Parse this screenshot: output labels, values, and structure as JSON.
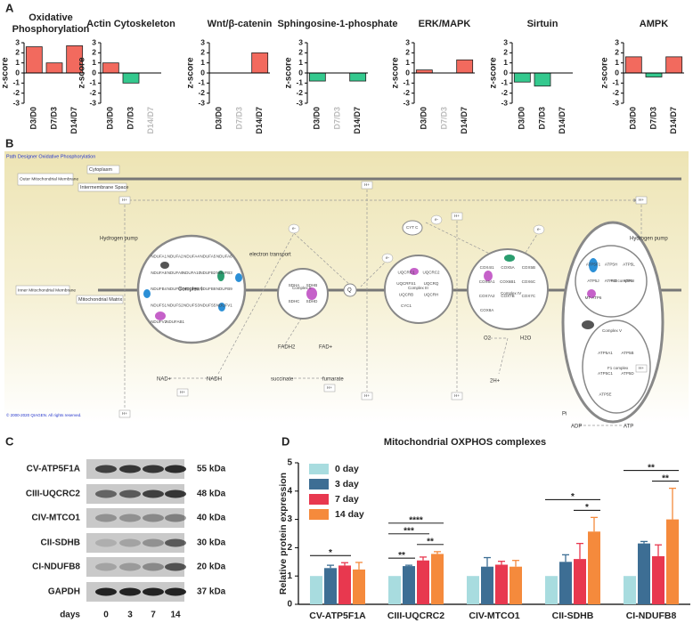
{
  "panel_labels": [
    "A",
    "B",
    "C",
    "D"
  ],
  "chart_data": [
    {
      "type": "bar",
      "title": "Oxidative Phosphorylation",
      "y_label": "z-score",
      "categories": [
        "D3/D0",
        "D7/D3",
        "D14/D7"
      ],
      "values": [
        2.6,
        1.0,
        2.7
      ],
      "positive_color": "#f26a5e",
      "negative_color": "#34c98e",
      "ylim": [
        -3,
        3
      ],
      "yticks": [
        -3,
        -2,
        -1,
        0,
        1,
        2,
        3
      ]
    },
    {
      "type": "bar",
      "title": "Actin Cytoskeleton",
      "y_label": "z-score",
      "categories": [
        "D3/D0",
        "D7/D3",
        "D14/D7"
      ],
      "values": [
        1.0,
        -1.0,
        null
      ],
      "positive_color": "#f26a5e",
      "negative_color": "#34c98e",
      "ylim": [
        -3,
        3
      ],
      "yticks": [
        -3,
        -2,
        -1,
        0,
        1,
        2,
        3
      ]
    },
    {
      "type": "bar",
      "title": "Wnt/β-catenin",
      "y_label": "z-score",
      "categories": [
        "D3/D0",
        "D7/D3",
        "D14/D7"
      ],
      "values": [
        0,
        null,
        2.0
      ],
      "positive_color": "#f26a5e",
      "negative_color": "#34c98e",
      "ylim": [
        -3,
        3
      ],
      "yticks": [
        -3,
        -2,
        -1,
        0,
        1,
        2,
        3
      ]
    },
    {
      "type": "bar",
      "title": "Sphingosine-1-phosphate",
      "y_label": "z-score",
      "categories": [
        "D3/D0",
        "D7/D3",
        "D14/D7"
      ],
      "values": [
        -0.8,
        null,
        -0.8
      ],
      "positive_color": "#f26a5e",
      "negative_color": "#34c98e",
      "ylim": [
        -3,
        3
      ],
      "yticks": [
        -3,
        -2,
        -1,
        0,
        1,
        2,
        3
      ]
    },
    {
      "type": "bar",
      "title": "ERK/MAPK",
      "y_label": "z-score",
      "categories": [
        "D3/D0",
        "D7/D3",
        "D14/D7"
      ],
      "values": [
        0.3,
        null,
        1.3
      ],
      "positive_color": "#f26a5e",
      "negative_color": "#34c98e",
      "ylim": [
        -3,
        3
      ],
      "yticks": [
        -3,
        -2,
        -1,
        0,
        1,
        2,
        3
      ]
    },
    {
      "type": "bar",
      "title": "Sirtuin",
      "y_label": "z-score",
      "categories": [
        "D3/D0",
        "D7/D3",
        "D14/D7"
      ],
      "values": [
        -0.9,
        -1.3,
        0
      ],
      "positive_color": "#f26a5e",
      "negative_color": "#34c98e",
      "ylim": [
        -3,
        3
      ],
      "yticks": [
        -3,
        -2,
        -1,
        0,
        1,
        2,
        3
      ]
    },
    {
      "type": "bar",
      "title": "AMPK",
      "y_label": "z-score",
      "categories": [
        "D3/D0",
        "D7/D3",
        "D14/D7"
      ],
      "values": [
        1.6,
        -0.4,
        1.6
      ],
      "positive_color": "#f26a5e",
      "negative_color": "#34c98e",
      "ylim": [
        -3,
        3
      ],
      "yticks": [
        -3,
        -2,
        -1,
        0,
        1,
        2,
        3
      ]
    },
    {
      "type": "grouped_bar",
      "title": "Mitochondrial OXPHOS complexes",
      "y_label": "Relative protein expression",
      "categories": [
        "CV-ATP5F1A",
        "CIII-UQCRC2",
        "CIV-MTCO1",
        "CII-SDHB",
        "CI-NDUFB8"
      ],
      "series": [
        {
          "name": "0 day",
          "color": "#a8dcdf",
          "values": [
            1,
            1,
            1,
            1,
            1
          ],
          "errors": [
            null,
            null,
            null,
            null,
            null
          ]
        },
        {
          "name": "3 day",
          "color": "#3d6e94",
          "values": [
            1.28,
            1.35,
            1.33,
            1.5,
            2.15
          ],
          "errors": [
            0.1,
            0.03,
            0.32,
            0.25,
            0.07
          ]
        },
        {
          "name": "7 day",
          "color": "#e8384f",
          "values": [
            1.37,
            1.55,
            1.4,
            1.6,
            1.7
          ],
          "errors": [
            0.1,
            0.12,
            0.12,
            0.55,
            0.4
          ]
        },
        {
          "name": "14 day",
          "color": "#f58a3c",
          "values": [
            1.23,
            1.78,
            1.33,
            2.57,
            3.0
          ],
          "errors": [
            0.25,
            0.08,
            0.22,
            0.5,
            1.1
          ]
        }
      ],
      "ylim": [
        0,
        5
      ],
      "yticks": [
        0,
        1,
        2,
        3,
        4,
        5
      ],
      "significance": [
        {
          "category": "CV-ATP5F1A",
          "from": "0 day",
          "to": "7 day",
          "label": "*"
        },
        {
          "category": "CIII-UQCRC2",
          "from": "0 day",
          "to": "3 day",
          "label": "**"
        },
        {
          "category": "CIII-UQCRC2",
          "from": "7 day",
          "to": "14 day",
          "label": "**"
        },
        {
          "category": "CIII-UQCRC2",
          "from": "0 day",
          "to": "7 day",
          "label": "***"
        },
        {
          "category": "CIII-UQCRC2",
          "from": "0 day",
          "to": "14 day",
          "label": "****"
        },
        {
          "category": "CII-SDHB",
          "from": "7 day",
          "to": "14 day",
          "label": "*"
        },
        {
          "category": "CII-SDHB",
          "from": "0 day",
          "to": "14 day",
          "label": "*"
        },
        {
          "category": "CI-NDUFB8",
          "from": "7 day",
          "to": "14 day",
          "label": "**"
        },
        {
          "category": "CI-NDUFB8",
          "from": "0 day",
          "to": "14 day",
          "label": "**"
        }
      ]
    }
  ],
  "pathway": {
    "title": "Path Designer Oxidative Phosphorylation",
    "compartments": {
      "cytoplasm": "Cytoplasm",
      "outer_membrane": "Outer Mitochondrial Membrane",
      "intermembrane_space": "Intermembrane Space",
      "inner_membrane": "Inner Mitochondrial Membrane",
      "matrix": "Mitochondrial Matrix"
    },
    "hydrogen_pump": "Hydrogen pump",
    "electron_transport": "electron transport",
    "h_plus": "H+",
    "electron": "e-",
    "q": "Q",
    "cyt_c": "CYT C",
    "complexes": [
      {
        "label": "Complex I",
        "genes": [
          "NDUFA1",
          "NDUFA2",
          "NDUFA4",
          "NDUFA5",
          "NDUFA6",
          "NDUFA8",
          "NDUFA9",
          "NDUFA10",
          "NDUFB2",
          "NDUFB3",
          "NDUFB4",
          "NDUFB5",
          "NDUFB6",
          "NDUFB8",
          "NDUFB9",
          "NDUFS1",
          "NDUFS2",
          "NDUFS3",
          "NDUFS5",
          "NDUFV1",
          "NDUFV2",
          "NDUFAB1"
        ]
      },
      {
        "label": "Complex II",
        "genes": [
          "SDHA",
          "SDHB",
          "SDHC",
          "SDHD"
        ]
      },
      {
        "label": "Complex III",
        "genes": [
          "UQCRC1",
          "UQCRC2",
          "UQCRFS1",
          "UQCRQ",
          "UQCRB",
          "UQCRH",
          "CYC1"
        ]
      },
      {
        "label": "Complex IV",
        "genes": [
          "COX4I1",
          "COX5A",
          "COX5B",
          "COX6A1",
          "COX6B1",
          "COX6C",
          "COX7A2",
          "COX7B",
          "COX7C",
          "COX8A"
        ]
      },
      {
        "label": "Complex V",
        "genes": [
          "ATP5F1",
          "ATP5H",
          "ATP5L",
          "ATP5J",
          "ATP5O",
          "ATP5I",
          "MT-ATP6"
        ],
        "f1_genes": [
          "ATP5A1",
          "ATP5B",
          "ATP5C1",
          "ATP5D",
          "ATP5E"
        ]
      }
    ],
    "fo_complex": "FO complex",
    "f1_complex": "F1 complex",
    "metabolites": {
      "nadh": "NADH",
      "nad": "NAD+",
      "fadh2": "FADH2",
      "fad": "FAD+",
      "succinate": "succinate",
      "fumarate": "fumarate",
      "o2": "O2",
      "h2o": "H2O",
      "two_h": "2H+",
      "pi": "Pi",
      "adp": "ADP",
      "atp": "ATP"
    },
    "copyright": "© 2000-2020 QIAGEN. All rights reserved."
  },
  "blot": {
    "rows": [
      {
        "protein": "CV-ATP5F1A",
        "size": "55 kDa"
      },
      {
        "protein": "CIII-UQCRC2",
        "size": "48 kDa"
      },
      {
        "protein": "CIV-MTCO1",
        "size": "40 kDa"
      },
      {
        "protein": "CII-SDHB",
        "size": "30 kDa"
      },
      {
        "protein": "CI-NDUFB8",
        "size": "20 kDa"
      },
      {
        "protein": "GAPDH",
        "size": "37 kDa"
      }
    ],
    "lanes_label": "days",
    "lanes": [
      0,
      3,
      7,
      14
    ]
  }
}
